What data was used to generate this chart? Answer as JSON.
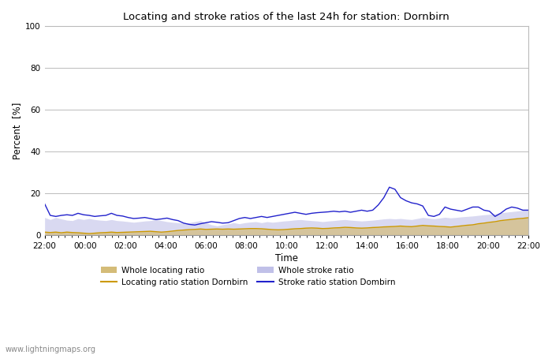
{
  "title": "Locating and stroke ratios of the last 24h for station: Dornbirn",
  "xlabel": "Time",
  "ylabel": "Percent  [%]",
  "ylim": [
    0,
    100
  ],
  "yticks": [
    0,
    20,
    40,
    60,
    80,
    100
  ],
  "xtick_labels": [
    "22:00",
    "00:00",
    "02:00",
    "04:00",
    "06:00",
    "08:00",
    "10:00",
    "12:00",
    "14:00",
    "16:00",
    "18:00",
    "20:00",
    "22:00"
  ],
  "watermark": "www.lightningmaps.org",
  "bg_color": "#ffffff",
  "plot_bg_color": "#ffffff",
  "grid_color": "#bbbbbb",
  "whole_loc_color": "#d4bc78",
  "whole_stroke_color": "#c0c0e8",
  "loc_station_color": "#cc9900",
  "stroke_station_color": "#2222cc",
  "legend_labels": [
    "Whole locating ratio",
    "Locating ratio station Dornbirn",
    "Whole stroke ratio",
    "Stroke ratio station Dombirn"
  ],
  "whole_loc_ratio": [
    1.5,
    1.3,
    1.5,
    1.2,
    1.5,
    1.3,
    1.2,
    1.0,
    0.8,
    1.0,
    1.2,
    1.3,
    1.5,
    1.3,
    1.4,
    1.5,
    1.6,
    1.7,
    1.8,
    1.9,
    1.7,
    1.5,
    1.7,
    2.0,
    2.3,
    2.5,
    2.7,
    2.8,
    3.0,
    2.8,
    2.9,
    3.0,
    2.9,
    3.0,
    2.9,
    3.0,
    3.1,
    3.2,
    3.2,
    3.1,
    2.9,
    2.7,
    2.6,
    2.7,
    2.9,
    3.1,
    3.2,
    3.4,
    3.5,
    3.4,
    3.2,
    3.3,
    3.5,
    3.6,
    3.8,
    3.7,
    3.5,
    3.4,
    3.5,
    3.7,
    3.8,
    4.0,
    4.1,
    4.2,
    4.4,
    4.2,
    4.1,
    4.4,
    4.7,
    4.5,
    4.4,
    4.2,
    4.1,
    3.9,
    4.2,
    4.5,
    4.8,
    5.0,
    5.5,
    5.8,
    6.2,
    6.5,
    7.0,
    7.3,
    7.6,
    7.9,
    8.1,
    8.4
  ],
  "whole_stroke_ratio": [
    8.5,
    7.5,
    8.5,
    7.8,
    7.2,
    7.0,
    8.0,
    7.5,
    8.0,
    7.5,
    7.2,
    7.0,
    7.5,
    7.0,
    6.8,
    6.5,
    6.2,
    6.5,
    6.8,
    7.0,
    7.5,
    7.0,
    6.5,
    6.2,
    6.0,
    5.8,
    6.0,
    6.5,
    7.0,
    6.0,
    5.0,
    4.5,
    5.0,
    5.5,
    6.0,
    5.5,
    6.0,
    6.3,
    6.5,
    6.0,
    6.5,
    6.2,
    6.5,
    6.8,
    7.0,
    7.3,
    7.5,
    7.2,
    7.0,
    6.8,
    6.5,
    6.8,
    7.0,
    7.3,
    7.5,
    7.2,
    7.0,
    6.8,
    7.0,
    7.2,
    7.5,
    7.8,
    8.0,
    7.8,
    8.0,
    7.7,
    7.5,
    8.0,
    8.5,
    8.2,
    7.9,
    8.2,
    8.6,
    8.3,
    8.5,
    8.8,
    9.0,
    9.2,
    9.5,
    9.8,
    10.0,
    10.3,
    10.8,
    11.0,
    11.3,
    11.6,
    11.9,
    12.2
  ],
  "loc_station": [
    1.5,
    1.3,
    1.5,
    1.2,
    1.5,
    1.3,
    1.2,
    1.0,
    0.8,
    1.0,
    1.2,
    1.3,
    1.5,
    1.3,
    1.4,
    1.5,
    1.6,
    1.7,
    1.8,
    1.9,
    1.7,
    1.5,
    1.7,
    2.0,
    2.3,
    2.5,
    2.7,
    2.8,
    3.0,
    2.8,
    2.9,
    3.0,
    2.9,
    3.0,
    2.9,
    3.0,
    3.1,
    3.2,
    3.2,
    3.1,
    2.9,
    2.7,
    2.6,
    2.7,
    2.9,
    3.1,
    3.2,
    3.4,
    3.5,
    3.4,
    3.2,
    3.3,
    3.5,
    3.6,
    3.8,
    3.7,
    3.5,
    3.4,
    3.5,
    3.7,
    3.8,
    4.0,
    4.1,
    4.2,
    4.4,
    4.2,
    4.1,
    4.4,
    4.7,
    4.5,
    4.4,
    4.2,
    4.1,
    3.9,
    4.2,
    4.5,
    4.8,
    5.0,
    5.5,
    5.8,
    6.2,
    6.5,
    7.0,
    7.3,
    7.6,
    7.9,
    8.1,
    8.4
  ],
  "stroke_station": [
    15.0,
    9.5,
    9.0,
    9.5,
    9.8,
    9.5,
    10.5,
    9.8,
    9.5,
    9.0,
    9.3,
    9.5,
    10.5,
    9.5,
    9.2,
    8.5,
    8.0,
    8.2,
    8.5,
    8.0,
    7.5,
    7.8,
    8.2,
    7.5,
    7.0,
    5.8,
    5.2,
    4.9,
    5.5,
    6.0,
    6.5,
    6.2,
    5.8,
    6.0,
    7.0,
    8.0,
    8.5,
    8.0,
    8.5,
    9.0,
    8.5,
    9.0,
    9.5,
    10.0,
    10.5,
    11.0,
    10.5,
    10.0,
    10.5,
    10.8,
    11.0,
    11.2,
    11.5,
    11.2,
    11.5,
    11.0,
    11.5,
    12.0,
    11.5,
    12.0,
    14.5,
    18.0,
    23.0,
    22.0,
    18.0,
    16.5,
    15.5,
    15.0,
    14.0,
    9.5,
    9.0,
    10.0,
    13.5,
    12.5,
    12.0,
    11.5,
    12.5,
    13.5,
    13.5,
    12.0,
    11.5,
    9.0,
    10.5,
    12.5,
    13.5,
    13.0,
    12.0,
    12.0
  ]
}
